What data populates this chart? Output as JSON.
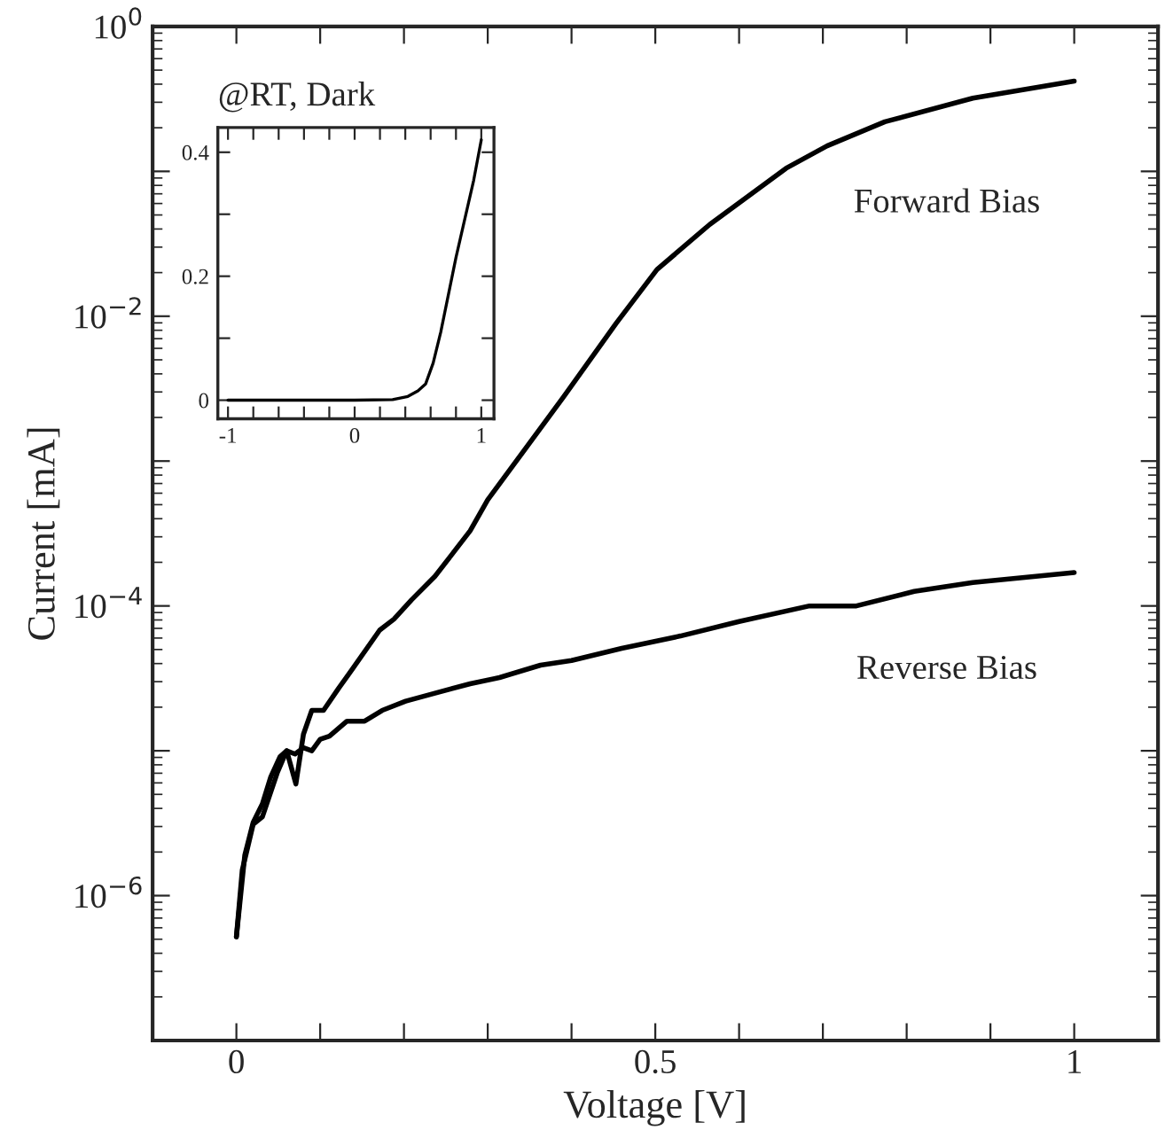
{
  "chart_data": [
    {
      "type": "line",
      "xlabel": "Voltage [V]",
      "ylabel": "Current [mA]",
      "log": "y",
      "xlim": [
        -0.1,
        1.1
      ],
      "xticks": [
        0,
        {
          "value": 0.1,
          "label": null
        },
        {
          "value": 0.2,
          "label": null
        },
        {
          "value": 0.3,
          "label": null
        },
        {
          "value": 0.4,
          "label": null
        },
        0.5,
        {
          "value": 0.6,
          "label": null
        },
        {
          "value": 0.7,
          "label": null
        },
        {
          "value": 0.8,
          "label": null
        },
        {
          "value": 0.9,
          "label": null
        },
        1
      ],
      "ylim": [
        1e-07,
        1
      ],
      "yticks": [
        {
          "value": 1,
          "label": "10$^{0}$"
        },
        {
          "value": 0.1,
          "label": null
        },
        {
          "value": 0.01,
          "label": "10$^{−2}$"
        },
        {
          "value": 0.001,
          "label": null
        },
        {
          "value": 0.0001,
          "label": "10$^{−4}$"
        },
        {
          "value": 1e-05,
          "label": null
        },
        {
          "value": 1e-06,
          "label": "10$^{−6}$"
        }
      ],
      "grid": false,
      "legend": false,
      "line_style": "solid",
      "marker": "none",
      "series": [
        {
          "color": "#000000",
          "x": [
            0,
            0.01,
            0.02,
            0.031,
            0.041,
            0.052,
            0.06,
            0.071,
            0.08,
            0.09,
            0.104,
            0.122,
            0.139,
            0.171,
            0.188,
            0.209,
            0.237,
            0.279,
            0.3,
            0.391,
            0.453,
            0.502,
            0.565,
            0.656,
            0.705,
            0.774,
            0.879,
            1.0
          ],
          "values": [
            5.2e-07,
            1.9e-06,
            3.2e-06,
            4.3e-06,
            6.6e-06,
            9.1e-06,
            1e-05,
            5.9e-06,
            1.3e-05,
            1.9e-05,
            1.9e-05,
            2.7e-05,
            3.7e-05,
            6.8e-05,
            8.1e-05,
            0.00011,
            0.00016,
            0.00033,
            0.00054,
            0.0028,
            0.0089,
            0.021,
            0.043,
            0.105,
            0.15,
            0.22,
            0.32,
            0.42
          ]
        },
        {
          "color": "#000000",
          "x": [
            0,
            0.007,
            0.02,
            0.031,
            0.049,
            0.06,
            0.07,
            0.08,
            0.09,
            0.1,
            0.111,
            0.132,
            0.153,
            0.174,
            0.202,
            0.237,
            0.279,
            0.314,
            0.363,
            0.4,
            0.46,
            0.53,
            0.6,
            0.684,
            0.74,
            0.809,
            0.879,
            1.0
          ],
          "values": [
            5.2e-07,
            1.5e-06,
            3.1e-06,
            3.5e-06,
            7.1e-06,
            1e-05,
            9.5e-06,
            1.05e-05,
            1e-05,
            1.2e-05,
            1.26e-05,
            1.6e-05,
            1.6e-05,
            1.9e-05,
            2.2e-05,
            2.5e-05,
            2.9e-05,
            3.2e-05,
            3.9e-05,
            4.2e-05,
            5.1e-05,
            6.2e-05,
            7.8e-05,
            0.0001,
            0.0001,
            0.000126,
            0.000145,
            0.00017
          ]
        }
      ],
      "annotations": [
        "Forward Bias",
        "Reverse Bias"
      ]
    },
    {
      "type": "line",
      "title": "@RT, Dark",
      "xlim": [
        -1.08,
        1.1
      ],
      "xticks": [
        -1,
        {
          "value": -0.8,
          "label": null
        },
        {
          "value": -0.6,
          "label": null
        },
        {
          "value": -0.4,
          "label": null
        },
        {
          "value": -0.2,
          "label": null
        },
        0,
        {
          "value": 0.2,
          "label": null
        },
        {
          "value": 0.4,
          "label": null
        },
        {
          "value": 0.6,
          "label": null
        },
        {
          "value": 0.8,
          "label": null
        },
        1
      ],
      "ylim": [
        -0.03,
        0.44
      ],
      "yticks": [
        0,
        {
          "value": 0.1,
          "label": null
        },
        0.2,
        {
          "value": 0.3,
          "label": null
        },
        0.4
      ],
      "grid": false,
      "legend": false,
      "line_style": "solid",
      "marker": "none",
      "series": [
        {
          "color": "#000000",
          "x": [
            -1,
            0,
            0.3,
            0.42,
            0.5,
            0.56,
            0.62,
            0.68,
            0.8,
            0.94,
            1.0
          ],
          "values": [
            0,
            0,
            0.001,
            0.006,
            0.015,
            0.026,
            0.06,
            0.11,
            0.23,
            0.355,
            0.42
          ]
        }
      ]
    }
  ]
}
